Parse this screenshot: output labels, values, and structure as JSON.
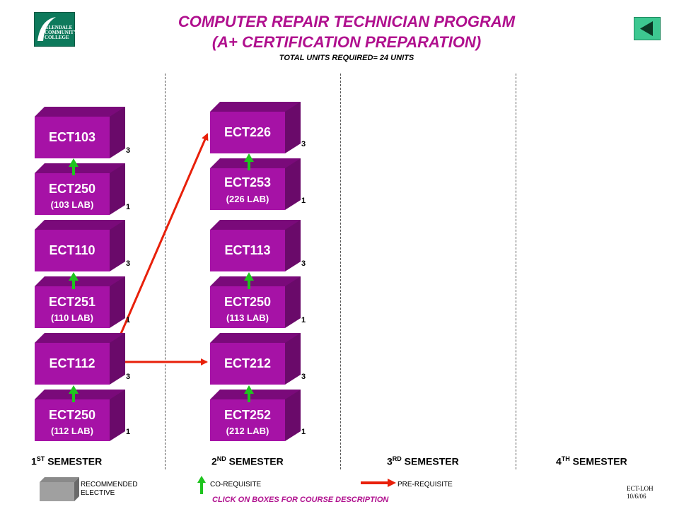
{
  "header": {
    "logo_text": "GLENDALE COMMUNITY COLLEGE",
    "title_line1": "COMPUTER REPAIR TECHNICIAN PROGRAM",
    "title_line2": "(A+ CERTIFICATION PREPARATION)",
    "subtitle": "TOTAL  UNITS REQUIRED=  24 UNITS"
  },
  "courses": {
    "s1_ect103": {
      "code": "ECT103",
      "lab": "",
      "units": "3"
    },
    "s1_ect250a": {
      "code": "ECT250",
      "lab": "(103 LAB)",
      "units": "1"
    },
    "s1_ect110": {
      "code": "ECT110",
      "lab": "",
      "units": "3"
    },
    "s1_ect251": {
      "code": "ECT251",
      "lab": "(110 LAB)",
      "units": "1"
    },
    "s1_ect112": {
      "code": "ECT112",
      "lab": "",
      "units": "3"
    },
    "s1_ect250b": {
      "code": "ECT250",
      "lab": "(112 LAB)",
      "units": "1"
    },
    "s2_ect226": {
      "code": "ECT226",
      "lab": "",
      "units": "3"
    },
    "s2_ect253": {
      "code": "ECT253",
      "lab": "(226 LAB)",
      "units": "1"
    },
    "s2_ect113": {
      "code": "ECT113",
      "lab": "",
      "units": "3"
    },
    "s2_ect250": {
      "code": "ECT250",
      "lab": "(113 LAB)",
      "units": "1"
    },
    "s2_ect212": {
      "code": "ECT212",
      "lab": "",
      "units": "3"
    },
    "s2_ect252": {
      "code": "ECT252",
      "lab": "(212 LAB)",
      "units": "1"
    }
  },
  "semesters": {
    "s1": {
      "num": "1",
      "sup": "ST",
      "label": " SEMESTER"
    },
    "s2": {
      "num": "2",
      "sup": "ND",
      "label": " SEMESTER"
    },
    "s3": {
      "num": "3",
      "sup": "RD",
      "label": " SEMESTER"
    },
    "s4": {
      "num": "4",
      "sup": "TH",
      "label": " SEMESTER"
    }
  },
  "legend": {
    "elective_line1": "RECOMMENDED",
    "elective_line2": "ELECTIVE",
    "coreq": "CO-REQUISITE",
    "prereq": "PRE-REQUISITE"
  },
  "footer": {
    "click_note": "CLICK ON BOXES FOR COURSE DESCRIPTION",
    "code_line1": "ECT-LOH",
    "code_line2": "10/6/06"
  },
  "colors": {
    "box_front": "#a612a6",
    "box_top": "#7a0a7a",
    "box_side": "#6a0a6a",
    "title": "#b0108e",
    "coreq_arrow": "#1fc41f",
    "prereq_arrow": "#e8200a"
  }
}
